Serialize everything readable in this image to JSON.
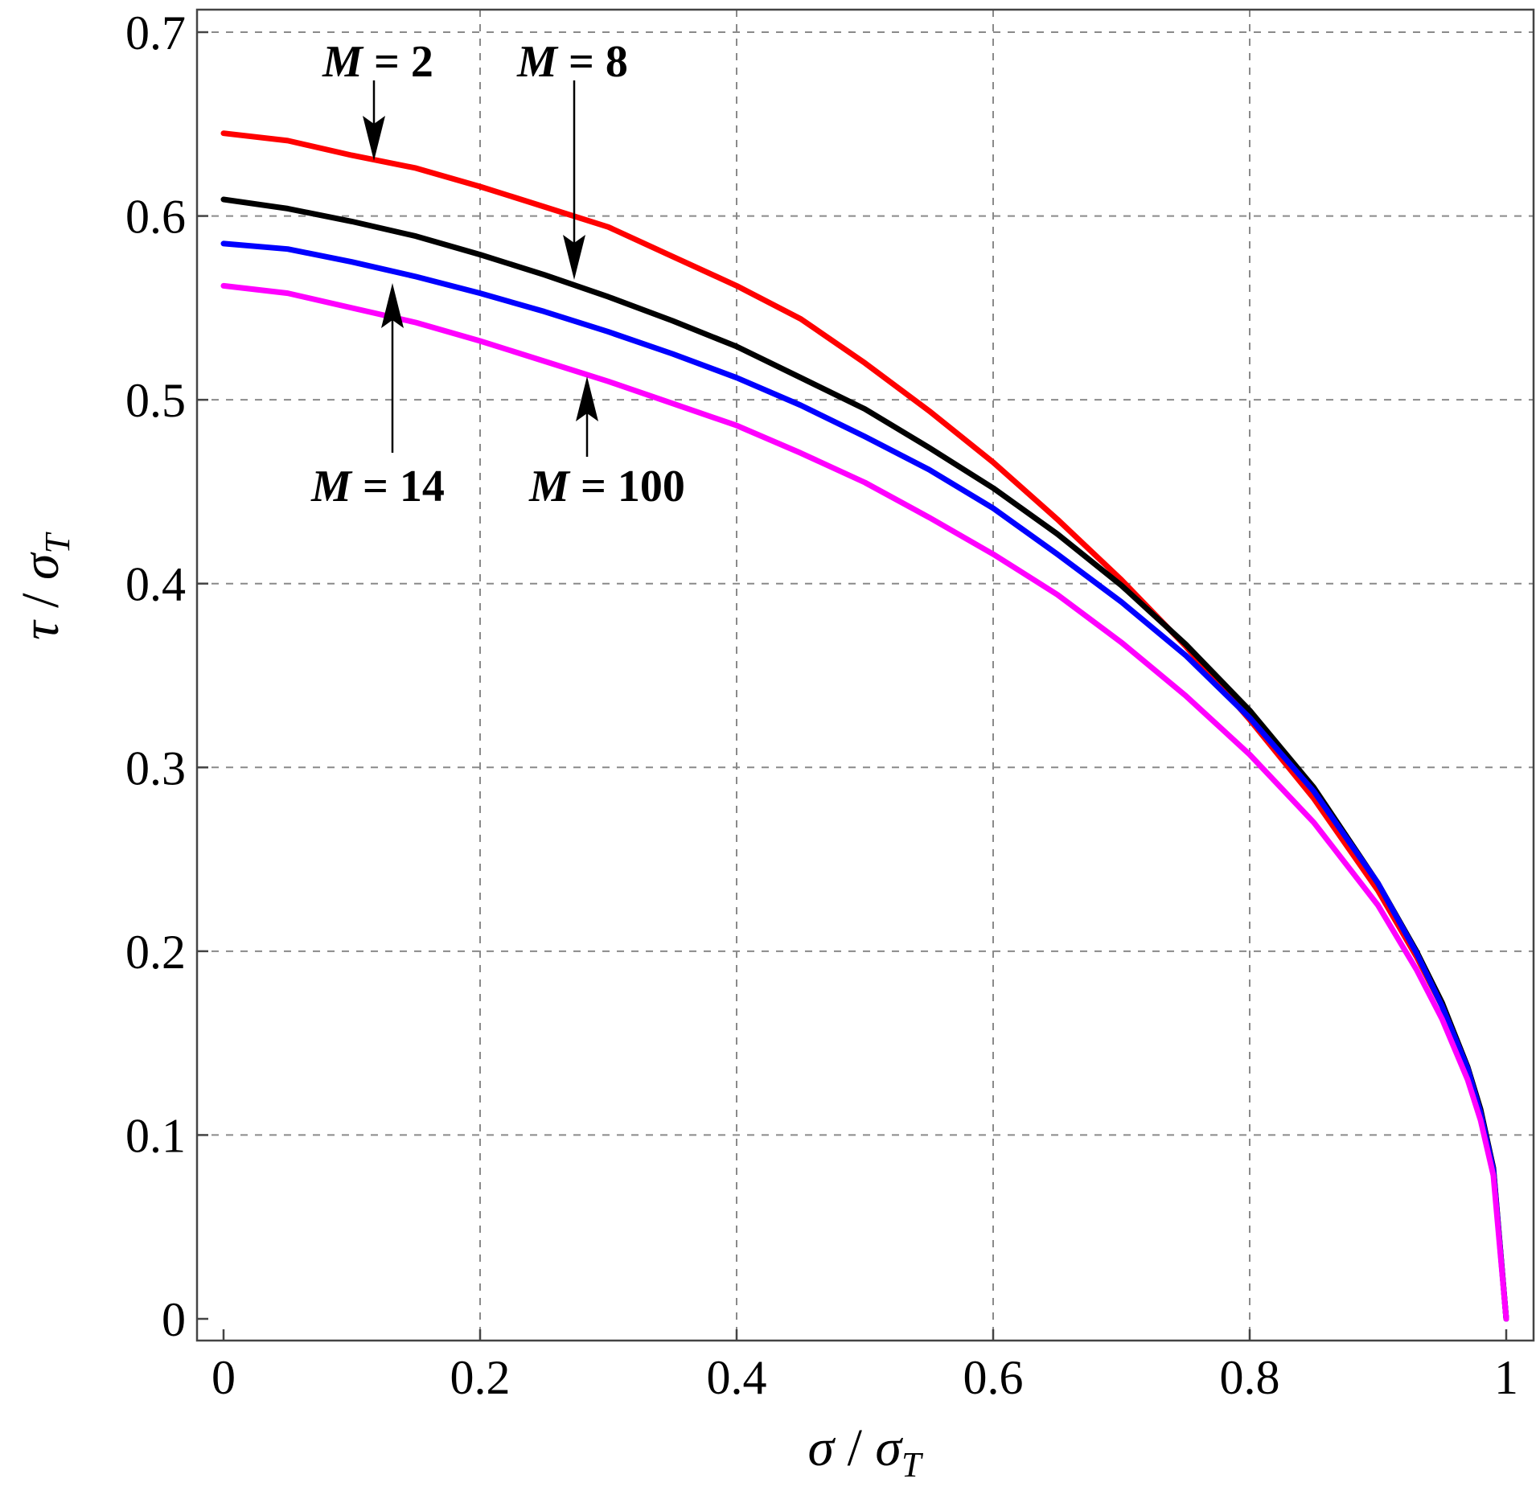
{
  "chart_data": {
    "type": "line",
    "xlabel": {
      "main": "σ",
      "sep": " / ",
      "denom": "σ",
      "sub": "T"
    },
    "ylabel": {
      "main": "τ",
      "sep": " / ",
      "denom": "σ",
      "sub": "T"
    },
    "xlim": [
      0,
      1
    ],
    "ylim": [
      0,
      0.7
    ],
    "x_ticks": [
      "0",
      "0.2",
      "0.4",
      "0.6",
      "0.8",
      "1"
    ],
    "y_ticks": [
      "0",
      "0.1",
      "0.2",
      "0.3",
      "0.4",
      "0.5",
      "0.6",
      "0.7"
    ],
    "grid": true,
    "x": [
      0,
      0.05,
      0.1,
      0.15,
      0.2,
      0.25,
      0.3,
      0.35,
      0.4,
      0.45,
      0.5,
      0.55,
      0.6,
      0.65,
      0.7,
      0.75,
      0.8,
      0.85,
      0.9,
      0.93,
      0.95,
      0.97,
      0.98,
      0.99,
      1.0
    ],
    "series": [
      {
        "color": "#ff0000",
        "label_text": "M = 2",
        "label_var": "M",
        "label_eq": " = ",
        "label_num": "2",
        "values": [
          0.645,
          0.641,
          0.633,
          0.626,
          0.616,
          0.605,
          0.594,
          0.578,
          0.562,
          0.544,
          0.52,
          0.494,
          0.466,
          0.435,
          0.402,
          0.366,
          0.326,
          0.283,
          0.233,
          0.197,
          0.17,
          0.136,
          0.113,
          0.082,
          0
        ]
      },
      {
        "color": "#000000",
        "label_text": "M = 8",
        "label_var": "M",
        "label_eq": " = ",
        "label_num": "8",
        "values": [
          0.609,
          0.604,
          0.597,
          0.589,
          0.579,
          0.568,
          0.556,
          0.543,
          0.529,
          0.512,
          0.495,
          0.474,
          0.452,
          0.427,
          0.399,
          0.367,
          0.331,
          0.289,
          0.237,
          0.2,
          0.172,
          0.137,
          0.114,
          0.082,
          0
        ]
      },
      {
        "color": "#0000ff",
        "label_text": "M = 14",
        "label_var": "M",
        "label_eq": " = ",
        "label_num": "14",
        "values": [
          0.585,
          0.582,
          0.575,
          0.567,
          0.558,
          0.548,
          0.537,
          0.525,
          0.512,
          0.497,
          0.48,
          0.462,
          0.441,
          0.416,
          0.39,
          0.361,
          0.327,
          0.287,
          0.237,
          0.199,
          0.17,
          0.136,
          0.112,
          0.081,
          0
        ]
      },
      {
        "color": "#ff00ff",
        "label_text": "M = 100",
        "label_var": "M",
        "label_eq": " = ",
        "label_num": "100",
        "values": [
          0.562,
          0.558,
          0.55,
          0.542,
          0.532,
          0.521,
          0.51,
          0.498,
          0.486,
          0.471,
          0.455,
          0.436,
          0.416,
          0.394,
          0.368,
          0.339,
          0.307,
          0.27,
          0.225,
          0.19,
          0.163,
          0.13,
          0.108,
          0.078,
          0
        ]
      }
    ]
  }
}
